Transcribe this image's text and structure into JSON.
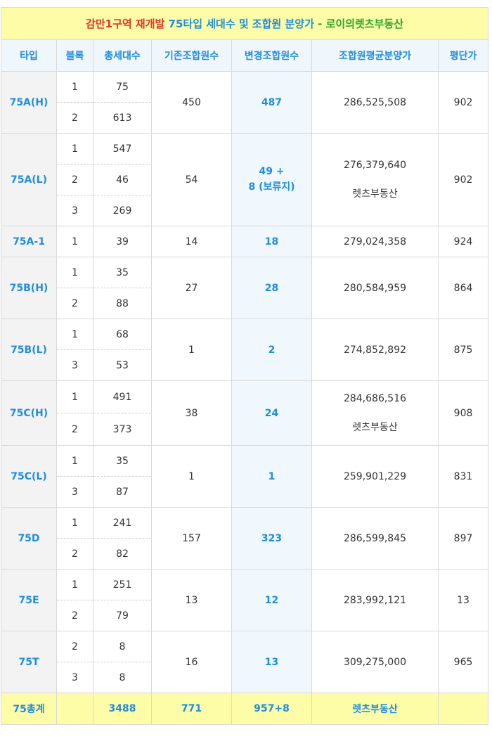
{
  "title": {
    "part1": "감만1구역 재개발",
    "part2": "75타입 세대수 및 조합원 분양가",
    "part3": "- 로이의렛츠부동산"
  },
  "headers": [
    "타입",
    "블록",
    "총세대수",
    "기존조합원수",
    "변경조합원수",
    "조합원평균분양가",
    "평단가"
  ],
  "rows": {
    "r75AH": {
      "type": "75A(H)",
      "blocks": [
        "1",
        "2"
      ],
      "units": [
        "75",
        "613"
      ],
      "existing": "450",
      "changed": "487",
      "price": "286,525,508",
      "ppp": "902"
    },
    "r75AL": {
      "type": "75A(L)",
      "blocks": [
        "1",
        "2",
        "3"
      ],
      "units": [
        "547",
        "46",
        "269"
      ],
      "existing": "54",
      "changed_line1": "49 +",
      "changed_line2": "8 (보류지)",
      "price": "276,379,640",
      "price_note": "렛츠부동산",
      "ppp": "902"
    },
    "r75A1": {
      "type": "75A-1",
      "blocks": [
        "1"
      ],
      "units": [
        "39"
      ],
      "existing": "14",
      "changed": "18",
      "price": "279,024,358",
      "ppp": "924"
    },
    "r75BH": {
      "type": "75B(H)",
      "blocks": [
        "1",
        "2"
      ],
      "units": [
        "35",
        "88"
      ],
      "existing": "27",
      "changed": "28",
      "price": "280,584,959",
      "ppp": "864"
    },
    "r75BL": {
      "type": "75B(L)",
      "blocks": [
        "1",
        "3"
      ],
      "units": [
        "68",
        "53"
      ],
      "existing": "1",
      "changed": "2",
      "price": "274,852,892",
      "ppp": "875"
    },
    "r75CH": {
      "type": "75C(H)",
      "blocks": [
        "1",
        "2"
      ],
      "units": [
        "491",
        "373"
      ],
      "existing": "38",
      "changed": "24",
      "price": "284,686,516",
      "price_note": "렛츠부동산",
      "ppp": "908"
    },
    "r75CL": {
      "type": "75C(L)",
      "blocks": [
        "1",
        "3"
      ],
      "units": [
        "35",
        "87"
      ],
      "existing": "1",
      "changed": "1",
      "price": "259,901,229",
      "ppp": "831"
    },
    "r75D": {
      "type": "75D",
      "blocks": [
        "1",
        "2"
      ],
      "units": [
        "241",
        "82"
      ],
      "existing": "157",
      "changed": "323",
      "price": "286,599,845",
      "ppp": "897"
    },
    "r75E": {
      "type": "75E",
      "blocks": [
        "1",
        "2"
      ],
      "units": [
        "251",
        "79"
      ],
      "existing": "13",
      "changed": "12",
      "price": "283,992,121",
      "ppp": "13"
    },
    "r75T": {
      "type": "75T",
      "blocks": [
        "2",
        "3"
      ],
      "units": [
        "8",
        "8"
      ],
      "existing": "16",
      "changed": "13",
      "price": "309,275,000",
      "ppp": "965"
    }
  },
  "total": {
    "label": "75총계",
    "block": "",
    "units": "3488",
    "existing": "771",
    "changed": "957+8",
    "price": "렛츠부동산",
    "ppp": ""
  }
}
